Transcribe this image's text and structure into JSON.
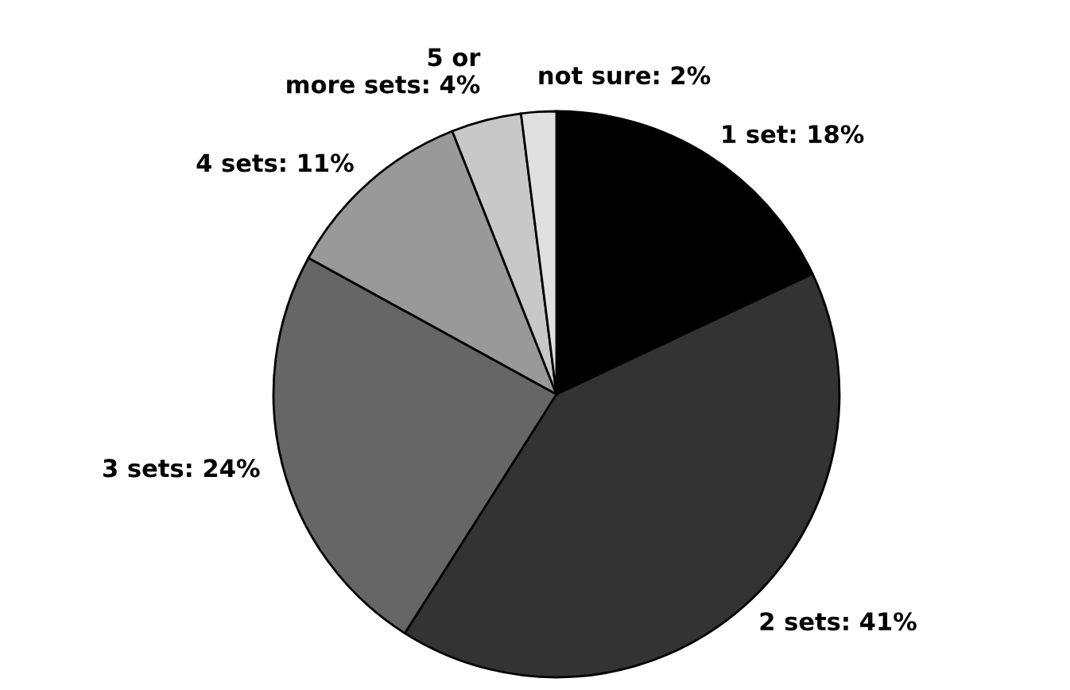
{
  "chart_data": {
    "type": "pie",
    "categories": [
      "1 set: 18%",
      "2 sets: 41%",
      "3 sets: 24%",
      "4 sets: 11%",
      "5 or\nmore sets: 4%",
      "not sure: 2%"
    ],
    "values": [
      18,
      41,
      24,
      11,
      4,
      2
    ],
    "colors": [
      "#000000",
      "#333333",
      "#666666",
      "#999999",
      "#c8c8c8",
      "#e0e0e0"
    ]
  }
}
